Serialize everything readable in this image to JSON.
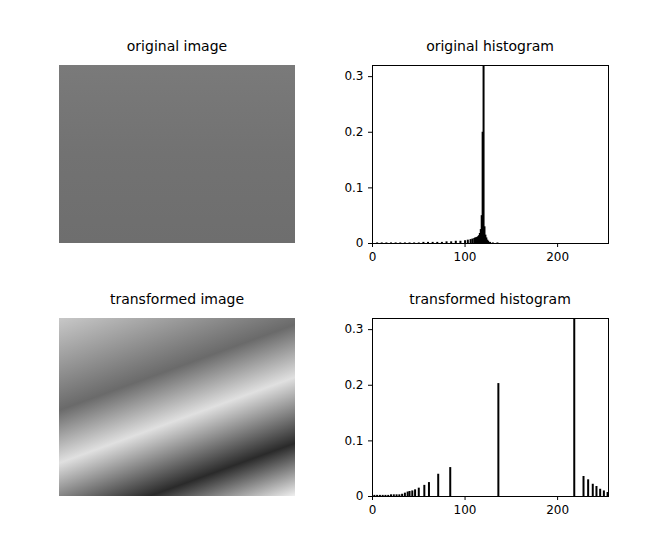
{
  "chart_data": [
    {
      "type": "image",
      "title": "original image"
    },
    {
      "type": "bar",
      "title": "original histogram",
      "x": [
        5,
        10,
        15,
        20,
        25,
        30,
        35,
        40,
        45,
        50,
        55,
        60,
        65,
        70,
        75,
        80,
        85,
        90,
        95,
        100,
        103,
        106,
        108,
        110,
        111,
        112,
        113,
        114,
        115,
        116,
        117,
        118,
        119,
        120,
        121,
        122,
        123,
        124,
        125,
        127,
        130,
        135
      ],
      "values": [
        0.001,
        0.001,
        0.001,
        0.001,
        0.001,
        0.001,
        0.001,
        0.001,
        0.001,
        0.001,
        0.002,
        0.002,
        0.002,
        0.002,
        0.002,
        0.003,
        0.003,
        0.004,
        0.004,
        0.005,
        0.006,
        0.007,
        0.008,
        0.009,
        0.01,
        0.01,
        0.011,
        0.012,
        0.014,
        0.018,
        0.025,
        0.05,
        0.2,
        0.32,
        0.03,
        0.015,
        0.01,
        0.006,
        0.004,
        0.002,
        0.001,
        0.001
      ],
      "color": "#000000",
      "xlim": [
        0,
        255
      ],
      "xticks": [
        0,
        100,
        200
      ],
      "ylim": [
        0,
        0.32
      ],
      "yticks": [
        0,
        0.1,
        0.2,
        0.3
      ]
    },
    {
      "type": "image",
      "title": "transformed image"
    },
    {
      "type": "bar",
      "title": "transformed histogram",
      "x": [
        2,
        5,
        8,
        11,
        14,
        17,
        20,
        23,
        26,
        29,
        32,
        35,
        38,
        40,
        43,
        46,
        50,
        56,
        61,
        71,
        84,
        136,
        218,
        228,
        233,
        238,
        242,
        246,
        250,
        254
      ],
      "values": [
        0.002,
        0.002,
        0.002,
        0.002,
        0.002,
        0.002,
        0.003,
        0.003,
        0.003,
        0.003,
        0.004,
        0.006,
        0.008,
        0.009,
        0.01,
        0.012,
        0.015,
        0.02,
        0.025,
        0.04,
        0.052,
        0.203,
        0.32,
        0.036,
        0.03,
        0.022,
        0.018,
        0.013,
        0.01,
        0.007
      ],
      "color": "#000000",
      "xlim": [
        0,
        255
      ],
      "xticks": [
        0,
        100,
        200
      ],
      "ylim": [
        0,
        0.32
      ],
      "yticks": [
        0,
        0.1,
        0.2,
        0.3
      ]
    }
  ]
}
